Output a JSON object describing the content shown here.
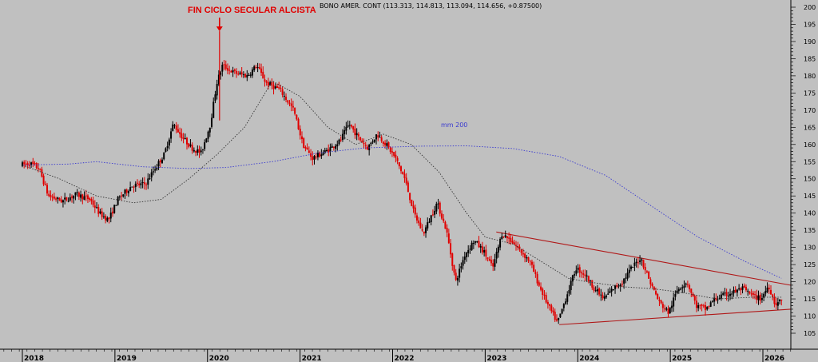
{
  "header": {
    "quote_line": "BONO AMER. CONT (113.313, 114.813, 113.094, 114.656, +0.87500)"
  },
  "annotations": {
    "secular_end": "FIN CICLO SECULAR ALCISTA",
    "mm200": "mm 200"
  },
  "colors": {
    "background": "#c0c0c0",
    "down_candle": "#e00000",
    "up_candle": "#000000",
    "mm200_line": "#3a3ad0",
    "mm_short_line": "#333333",
    "trendline": "#b01818",
    "arrow": "#e00000"
  },
  "chart_data": {
    "type": "candlestick",
    "title": "BONO AMER. CONT",
    "xlabel": "",
    "ylabel": "",
    "ylim": [
      102,
      202
    ],
    "xlim": [
      2018.0,
      2026.3
    ],
    "y_ticks": [
      105,
      110,
      115,
      120,
      125,
      130,
      135,
      140,
      145,
      150,
      155,
      160,
      165,
      170,
      175,
      180,
      185,
      190,
      195,
      200
    ],
    "x_ticks": [
      {
        "value": 2018,
        "label": "2018"
      },
      {
        "value": 2019,
        "label": "2019"
      },
      {
        "value": 2020,
        "label": "2020"
      },
      {
        "value": 2021,
        "label": "2021"
      },
      {
        "value": 2022,
        "label": "2022"
      },
      {
        "value": 2023,
        "label": "2023"
      },
      {
        "value": 2024,
        "label": "2024"
      },
      {
        "value": 2025,
        "label": "2025"
      },
      {
        "value": 2026,
        "label": "2026"
      }
    ],
    "price_path": [
      [
        2018.0,
        154.0
      ],
      [
        2018.1,
        154.5
      ],
      [
        2018.2,
        153.0
      ],
      [
        2018.3,
        145.0
      ],
      [
        2018.45,
        143.5
      ],
      [
        2018.6,
        145.5
      ],
      [
        2018.75,
        144.0
      ],
      [
        2018.85,
        140.0
      ],
      [
        2018.95,
        138.0
      ],
      [
        2019.05,
        144.0
      ],
      [
        2019.2,
        148.0
      ],
      [
        2019.35,
        148.5
      ],
      [
        2019.45,
        153.0
      ],
      [
        2019.55,
        157.0
      ],
      [
        2019.65,
        166.0
      ],
      [
        2019.75,
        162.0
      ],
      [
        2019.85,
        159.0
      ],
      [
        2019.95,
        157.5
      ],
      [
        2020.05,
        166.0
      ],
      [
        2020.12,
        178.0
      ],
      [
        2020.18,
        183.0
      ],
      [
        2020.3,
        181.0
      ],
      [
        2020.45,
        180.0
      ],
      [
        2020.55,
        183.0
      ],
      [
        2020.65,
        178.0
      ],
      [
        2020.8,
        176.0
      ],
      [
        2020.95,
        170.0
      ],
      [
        2021.05,
        160.0
      ],
      [
        2021.15,
        156.0
      ],
      [
        2021.3,
        158.0
      ],
      [
        2021.45,
        161.0
      ],
      [
        2021.55,
        166.0
      ],
      [
        2021.65,
        162.0
      ],
      [
        2021.75,
        159.0
      ],
      [
        2021.85,
        163.0
      ],
      [
        2021.95,
        160.0
      ],
      [
        2022.05,
        156.0
      ],
      [
        2022.15,
        150.0
      ],
      [
        2022.25,
        140.0
      ],
      [
        2022.35,
        134.0
      ],
      [
        2022.5,
        143.0
      ],
      [
        2022.6,
        135.0
      ],
      [
        2022.7,
        120.0
      ],
      [
        2022.8,
        128.0
      ],
      [
        2022.9,
        132.0
      ],
      [
        2023.0,
        129.0
      ],
      [
        2023.1,
        124.0
      ],
      [
        2023.2,
        134.0
      ],
      [
        2023.3,
        132.0
      ],
      [
        2023.4,
        129.0
      ],
      [
        2023.5,
        126.0
      ],
      [
        2023.6,
        119.0
      ],
      [
        2023.7,
        113.0
      ],
      [
        2023.8,
        108.0
      ],
      [
        2023.9,
        116.0
      ],
      [
        2024.0,
        124.0
      ],
      [
        2024.1,
        122.0
      ],
      [
        2024.2,
        118.0
      ],
      [
        2024.3,
        115.0
      ],
      [
        2024.4,
        118.0
      ],
      [
        2024.5,
        120.0
      ],
      [
        2024.6,
        124.0
      ],
      [
        2024.7,
        127.0
      ],
      [
        2024.8,
        120.0
      ],
      [
        2024.9,
        114.0
      ],
      [
        2025.0,
        111.0
      ],
      [
        2025.1,
        118.0
      ],
      [
        2025.2,
        120.0
      ],
      [
        2025.3,
        113.0
      ],
      [
        2025.4,
        112.0
      ],
      [
        2025.5,
        115.0
      ],
      [
        2025.6,
        116.0
      ],
      [
        2025.7,
        117.0
      ],
      [
        2025.8,
        118.0
      ],
      [
        2025.9,
        116.0
      ],
      [
        2026.0,
        115.0
      ],
      [
        2026.08,
        119.0
      ],
      [
        2026.15,
        113.5
      ],
      [
        2026.22,
        114.6
      ]
    ],
    "candle_count": 430,
    "series": [
      {
        "name": "mm 200",
        "type": "line",
        "style": "dotted",
        "points": [
          [
            2018.0,
            154.0
          ],
          [
            2018.5,
            154.3
          ],
          [
            2018.8,
            155.0
          ],
          [
            2019.3,
            153.5
          ],
          [
            2019.8,
            153.0
          ],
          [
            2020.2,
            153.3
          ],
          [
            2020.7,
            155.0
          ],
          [
            2021.2,
            157.5
          ],
          [
            2021.7,
            159.0
          ],
          [
            2022.3,
            159.5
          ],
          [
            2022.8,
            159.6
          ],
          [
            2023.3,
            158.8
          ],
          [
            2023.8,
            156.5
          ],
          [
            2024.3,
            151.0
          ],
          [
            2024.8,
            142.0
          ],
          [
            2025.3,
            133.0
          ],
          [
            2025.8,
            126.0
          ],
          [
            2026.2,
            121.0
          ]
        ]
      },
      {
        "type": "line",
        "style": "dotted",
        "points": [
          [
            2018.0,
            154.0
          ],
          [
            2018.4,
            150.0
          ],
          [
            2018.8,
            145.0
          ],
          [
            2019.2,
            143.0
          ],
          [
            2019.5,
            144.0
          ],
          [
            2019.8,
            150.0
          ],
          [
            2020.1,
            157.0
          ],
          [
            2020.4,
            165.0
          ],
          [
            2020.7,
            178.5
          ],
          [
            2021.0,
            174.0
          ],
          [
            2021.3,
            165.0
          ],
          [
            2021.6,
            160.0
          ],
          [
            2021.9,
            163.0
          ],
          [
            2022.2,
            160.0
          ],
          [
            2022.5,
            152.0
          ],
          [
            2022.8,
            140.0
          ],
          [
            2023.0,
            133.0
          ],
          [
            2023.3,
            131.0
          ],
          [
            2023.6,
            126.0
          ],
          [
            2023.9,
            121.0
          ],
          [
            2024.1,
            120.0
          ],
          [
            2024.5,
            118.5
          ],
          [
            2024.8,
            118.0
          ],
          [
            2025.1,
            117.0
          ],
          [
            2025.5,
            115.0
          ],
          [
            2025.9,
            115.5
          ],
          [
            2026.2,
            115.5
          ]
        ]
      }
    ],
    "trendlines": [
      {
        "from": [
          2023.12,
          134.5
        ],
        "to": [
          2026.3,
          119.0
        ]
      },
      {
        "from": [
          2023.8,
          107.5
        ],
        "to": [
          2026.3,
          112.0
        ]
      }
    ],
    "markers": [
      {
        "type": "arrow-down",
        "x": 2020.13,
        "y": 193.0
      }
    ]
  }
}
